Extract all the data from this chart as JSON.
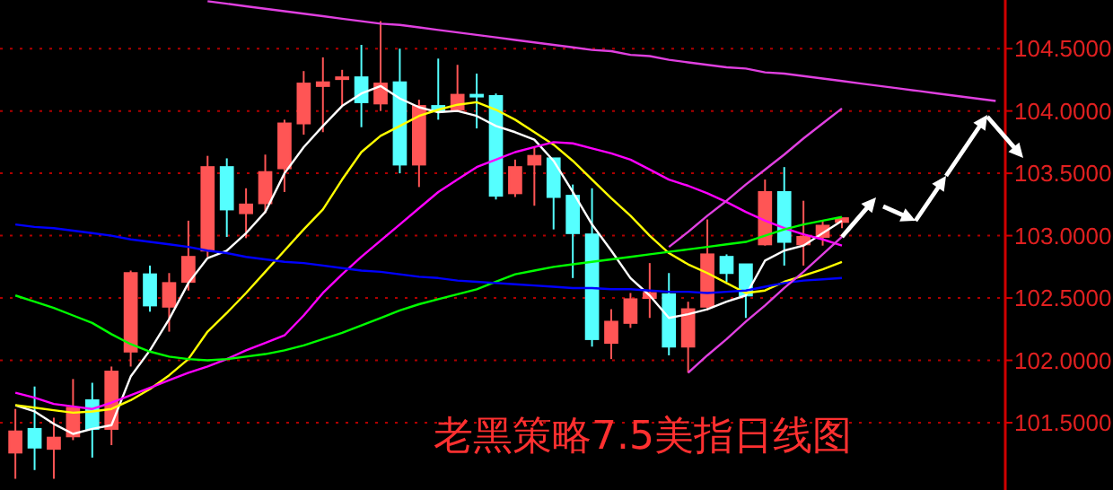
{
  "chart_data": {
    "type": "candlestick",
    "title": "老黑策略7.5美指日线图",
    "categories": [
      null,
      null,
      null,
      null,
      null,
      null,
      null,
      null,
      null,
      null,
      null,
      null,
      null,
      null,
      null,
      null,
      null,
      null,
      null,
      null,
      null,
      null,
      null,
      null,
      null,
      null,
      null,
      null,
      null,
      null,
      null,
      null,
      null,
      null,
      null,
      null,
      null,
      null,
      null,
      null,
      null,
      null,
      null,
      null,
      null,
      null,
      null,
      null,
      null,
      null,
      null,
      null
    ],
    "ohlc": [
      [
        101.26,
        101.61,
        101.05,
        101.43
      ],
      [
        101.45,
        101.79,
        101.12,
        101.3
      ],
      [
        101.29,
        101.54,
        101.05,
        101.38
      ],
      [
        101.39,
        101.85,
        101.36,
        101.62
      ],
      [
        101.68,
        101.82,
        101.22,
        101.45
      ],
      [
        101.45,
        101.95,
        101.32,
        101.91
      ],
      [
        102.07,
        102.72,
        101.95,
        102.7
      ],
      [
        102.69,
        102.76,
        102.39,
        102.44
      ],
      [
        102.43,
        102.7,
        102.23,
        102.62
      ],
      [
        102.63,
        103.12,
        102.56,
        102.83
      ],
      [
        102.88,
        103.64,
        102.83,
        103.55
      ],
      [
        103.55,
        103.62,
        102.99,
        103.21
      ],
      [
        103.18,
        103.38,
        102.98,
        103.25
      ],
      [
        103.26,
        103.65,
        103.18,
        103.51
      ],
      [
        103.54,
        103.93,
        103.35,
        103.9
      ],
      [
        103.9,
        104.32,
        103.81,
        104.22
      ],
      [
        104.2,
        104.43,
        103.83,
        104.23
      ],
      [
        104.26,
        104.33,
        104.04,
        104.27
      ],
      [
        104.27,
        104.53,
        103.87,
        104.07
      ],
      [
        104.06,
        104.72,
        104.0,
        104.22
      ],
      [
        104.23,
        104.5,
        103.5,
        103.57
      ],
      [
        103.57,
        104.09,
        103.39,
        104.04
      ],
      [
        104.04,
        104.42,
        103.93,
        104.0
      ],
      [
        104.01,
        104.37,
        103.99,
        104.13
      ],
      [
        104.13,
        104.3,
        103.86,
        104.12
      ],
      [
        104.12,
        104.14,
        103.29,
        103.32
      ],
      [
        103.34,
        103.61,
        103.31,
        103.55
      ],
      [
        103.57,
        103.71,
        103.24,
        103.64
      ],
      [
        103.62,
        103.62,
        103.05,
        103.31
      ],
      [
        103.32,
        103.41,
        102.66,
        103.02
      ],
      [
        103.01,
        103.38,
        102.11,
        102.17
      ],
      [
        102.14,
        102.41,
        102.01,
        102.31
      ],
      [
        102.3,
        102.54,
        102.26,
        102.49
      ],
      [
        102.5,
        102.78,
        102.34,
        102.54
      ],
      [
        102.53,
        102.7,
        102.04,
        102.11
      ],
      [
        102.11,
        102.47,
        101.9,
        102.41
      ],
      [
        102.43,
        103.13,
        102.4,
        102.85
      ],
      [
        102.83,
        102.85,
        102.63,
        102.7
      ],
      [
        102.77,
        102.77,
        102.34,
        102.52
      ],
      [
        102.93,
        103.45,
        102.92,
        103.35
      ],
      [
        103.35,
        103.55,
        102.76,
        102.95
      ],
      [
        102.93,
        103.28,
        102.76,
        102.99
      ],
      [
        102.99,
        103.12,
        102.92,
        103.08
      ],
      [
        103.11,
        103.14,
        103.06,
        103.14
      ],
      null,
      null,
      null,
      null,
      null,
      null,
      null,
      null
    ],
    "series": [
      {
        "type": "line",
        "color": "#ffffff",
        "values": [
          101.64,
          101.59,
          101.49,
          101.41,
          101.45,
          101.48,
          101.87,
          102.08,
          102.33,
          102.62,
          102.82,
          102.88,
          103.02,
          103.19,
          103.5,
          103.71,
          103.88,
          104.04,
          104.14,
          104.2,
          104.1,
          104.03,
          103.99,
          104.0,
          103.96,
          103.88,
          103.83,
          103.77,
          103.6,
          103.35,
          103.09,
          102.88,
          102.66,
          102.52,
          102.34,
          102.37,
          102.41,
          102.47,
          102.52,
          102.8,
          102.88,
          102.92,
          103.02,
          103.12,
          null,
          null,
          null,
          null,
          null,
          null,
          null,
          null
        ]
      },
      {
        "type": "line",
        "color": "#ffff00",
        "values": [
          101.64,
          101.62,
          101.6,
          101.58,
          101.59,
          101.61,
          101.68,
          101.77,
          101.88,
          102.01,
          102.23,
          102.38,
          102.54,
          102.71,
          102.88,
          103.05,
          103.21,
          103.45,
          103.67,
          103.8,
          103.88,
          103.96,
          104.01,
          104.05,
          104.07,
          104.01,
          103.93,
          103.83,
          103.73,
          103.6,
          103.45,
          103.3,
          103.16,
          103.0,
          102.86,
          102.77,
          102.7,
          102.62,
          102.54,
          102.56,
          102.63,
          102.68,
          102.73,
          102.79,
          null,
          null,
          null,
          null,
          null,
          null,
          null,
          null
        ]
      },
      {
        "type": "line",
        "color": "#ff00ff",
        "values": [
          101.74,
          101.7,
          101.65,
          101.63,
          101.61,
          101.66,
          101.72,
          101.78,
          101.84,
          101.9,
          101.95,
          102.01,
          102.08,
          102.14,
          102.2,
          102.36,
          102.54,
          102.69,
          102.83,
          102.96,
          103.09,
          103.22,
          103.35,
          103.45,
          103.55,
          103.61,
          103.67,
          103.71,
          103.75,
          103.74,
          103.7,
          103.66,
          103.61,
          103.53,
          103.45,
          103.4,
          103.34,
          103.27,
          103.19,
          103.12,
          103.06,
          103.01,
          102.97,
          102.92,
          null,
          null,
          null,
          null,
          null,
          null,
          null,
          null
        ]
      },
      {
        "type": "line",
        "color": "#00ff00",
        "values": [
          102.52,
          102.47,
          102.42,
          102.36,
          102.3,
          102.21,
          102.13,
          102.07,
          102.03,
          102.01,
          102.0,
          102.01,
          102.03,
          102.05,
          102.08,
          102.12,
          102.17,
          102.22,
          102.28,
          102.34,
          102.4,
          102.45,
          102.49,
          102.53,
          102.57,
          102.63,
          102.69,
          102.72,
          102.75,
          102.77,
          102.79,
          102.81,
          102.83,
          102.85,
          102.87,
          102.89,
          102.91,
          102.93,
          102.95,
          103.0,
          103.05,
          103.09,
          103.12,
          103.15,
          null,
          null,
          null,
          null,
          null,
          null,
          null,
          null
        ]
      },
      {
        "type": "line",
        "color": "#0000ff",
        "values": [
          103.09,
          103.07,
          103.06,
          103.04,
          103.02,
          103.0,
          102.97,
          102.95,
          102.93,
          102.91,
          102.88,
          102.86,
          102.83,
          102.81,
          102.79,
          102.78,
          102.76,
          102.74,
          102.72,
          102.71,
          102.69,
          102.67,
          102.66,
          102.64,
          102.63,
          102.62,
          102.61,
          102.6,
          102.59,
          102.58,
          102.58,
          102.57,
          102.57,
          102.56,
          102.55,
          102.55,
          102.54,
          102.55,
          102.56,
          102.59,
          102.62,
          102.64,
          102.65,
          102.66,
          null,
          null,
          null,
          null,
          null,
          null,
          null,
          null
        ]
      },
      {
        "type": "line",
        "color": "#e040e0",
        "values": [
          null,
          null,
          null,
          null,
          null,
          null,
          null,
          null,
          null,
          null,
          104.88,
          104.86,
          104.84,
          104.82,
          104.8,
          104.78,
          104.76,
          104.74,
          104.72,
          104.7,
          104.69,
          104.67,
          104.65,
          104.63,
          104.61,
          104.59,
          104.57,
          104.55,
          104.53,
          104.51,
          104.49,
          104.48,
          104.45,
          104.44,
          104.41,
          104.39,
          104.37,
          104.35,
          104.34,
          104.31,
          104.3,
          104.28,
          104.26,
          104.24,
          104.22,
          104.2,
          104.18,
          104.16,
          104.14,
          104.12,
          104.1,
          104.08
        ]
      },
      {
        "type": "line",
        "color": "#e040e0",
        "values": [
          null,
          null,
          null,
          null,
          null,
          null,
          null,
          null,
          null,
          null,
          null,
          null,
          null,
          null,
          null,
          null,
          null,
          null,
          null,
          null,
          null,
          null,
          null,
          null,
          null,
          null,
          null,
          null,
          null,
          null,
          null,
          null,
          null,
          null,
          102.91,
          103.03,
          103.16,
          103.28,
          103.41,
          103.53,
          103.65,
          103.78,
          103.9,
          104.02,
          null,
          null,
          null,
          null,
          null,
          null,
          null,
          null
        ]
      },
      {
        "type": "line",
        "color": "#e040e0",
        "values": [
          null,
          null,
          null,
          null,
          null,
          null,
          null,
          null,
          null,
          null,
          null,
          null,
          null,
          null,
          null,
          null,
          null,
          null,
          null,
          null,
          null,
          null,
          null,
          null,
          null,
          null,
          null,
          null,
          null,
          null,
          null,
          null,
          null,
          null,
          null,
          101.9,
          102.04,
          102.17,
          102.31,
          102.44,
          102.58,
          102.71,
          102.85,
          102.99,
          null,
          null,
          null,
          null,
          null,
          null,
          null,
          null
        ]
      }
    ],
    "ylim": [
      100.96,
      104.89
    ],
    "yticks": [
      {
        "value": 101.5,
        "label": "101.5000"
      },
      {
        "value": 102,
        "label": "102.0000"
      },
      {
        "value": 102.5,
        "label": "102.5000"
      },
      {
        "value": 103,
        "label": "103.0000"
      },
      {
        "value": 103.5,
        "label": "103.5000"
      },
      {
        "value": 104,
        "label": "104.0000"
      },
      {
        "value": 104.5,
        "label": "104.5000"
      }
    ],
    "grid": "y",
    "tick_labels": "y"
  }
}
